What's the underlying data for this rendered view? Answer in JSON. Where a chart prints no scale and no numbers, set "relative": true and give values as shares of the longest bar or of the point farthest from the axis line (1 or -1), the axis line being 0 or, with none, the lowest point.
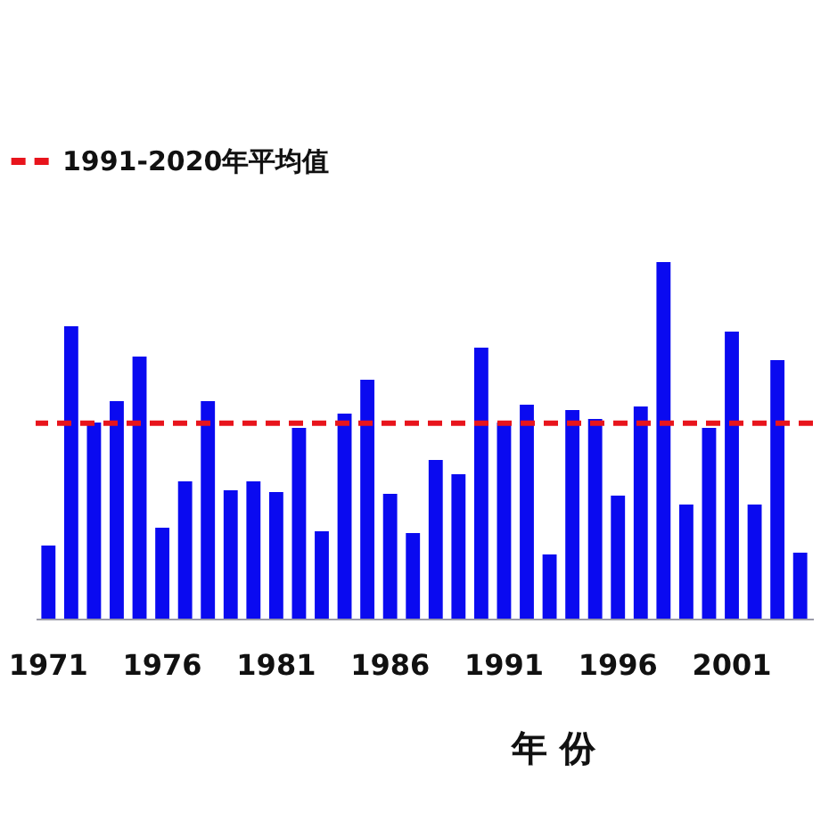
{
  "chart_data": {
    "type": "bar",
    "relative": true,
    "xlabel": "年 份",
    "legend": "top left",
    "categories": [
      "1971",
      null,
      null,
      null,
      null,
      "1976",
      null,
      null,
      null,
      null,
      "1981",
      null,
      null,
      null,
      null,
      "1986",
      null,
      null,
      null,
      null,
      "1991",
      null,
      null,
      null,
      null,
      "1996",
      null,
      null,
      null,
      null,
      "2001",
      null,
      null,
      null
    ],
    "values": [
      0.205,
      0.82,
      0.55,
      0.61,
      0.735,
      0.255,
      0.385,
      0.61,
      0.36,
      0.385,
      0.355,
      0.535,
      0.245,
      0.575,
      0.67,
      0.35,
      0.24,
      0.445,
      0.405,
      0.76,
      0.55,
      0.6,
      0.18,
      0.585,
      0.56,
      0.345,
      0.595,
      1,
      0.32,
      0.535,
      0.805,
      0.32,
      0.725,
      0.185
    ],
    "color": "#0a0af0",
    "ref_lines": [
      {
        "axis": "y",
        "value": 0.548,
        "label": "1991-2020年平均值",
        "color": "#e8141c",
        "line_style": "dashed"
      }
    ]
  }
}
